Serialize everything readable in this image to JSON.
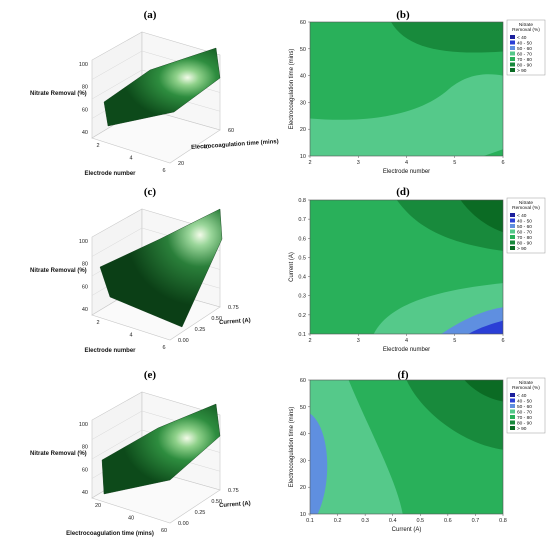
{
  "colors": {
    "lt40": "#1b1f9c",
    "b40_50": "#2a3fd6",
    "b50_60": "#5f8fe0",
    "b60_70": "#55c98a",
    "b70_80": "#29b05a",
    "b80_90": "#188a3c",
    "gt90": "#0b6b24",
    "surface_dark": "#0d4a1a",
    "surface_light": "#dff5d0"
  },
  "legend": {
    "title": [
      "Nitrate",
      "Removal (%)"
    ],
    "items": [
      "<  40",
      "40  -  50",
      "50  -  60",
      "60  -  70",
      "70  -  80",
      "80  -  90",
      ">  90"
    ]
  },
  "chart_data": [
    {
      "id": "a",
      "panel_label": "(a)",
      "type": "surface",
      "zlabel": "Nitrate Removal (%)",
      "xlabel": "Electrode number",
      "ylabel": "Electrocoagulation time (mins)",
      "xticks": [
        "2",
        "4",
        "6"
      ],
      "yticks": [
        "20",
        "40",
        "60"
      ],
      "zticks": [
        "40",
        "60",
        "80",
        "100"
      ],
      "xlim": [
        2,
        6
      ],
      "ylim": [
        10,
        60
      ],
      "zlim": [
        40,
        100
      ]
    },
    {
      "id": "b",
      "panel_label": "(b)",
      "type": "contour",
      "xlabel": "Electrode number",
      "ylabel": "Electrocoagulation time (mins)",
      "xticks": [
        "2",
        "3",
        "4",
        "5",
        "6"
      ],
      "yticks": [
        "10",
        "20",
        "30",
        "40",
        "50",
        "60"
      ],
      "xlim": [
        2,
        6
      ],
      "ylim": [
        10,
        60
      ]
    },
    {
      "id": "c",
      "panel_label": "(c)",
      "type": "surface",
      "zlabel": "Nitrate Removal (%)",
      "xlabel": "Electrode number",
      "ylabel": "Current (A)",
      "xticks": [
        "2",
        "4",
        "6"
      ],
      "yticks": [
        "0.00",
        "0.25",
        "0.50",
        "0.75"
      ],
      "zticks": [
        "40",
        "60",
        "80",
        "100"
      ],
      "xlim": [
        2,
        6
      ],
      "ylim": [
        0,
        0.8
      ],
      "zlim": [
        40,
        100
      ]
    },
    {
      "id": "d",
      "panel_label": "(d)",
      "type": "contour",
      "xlabel": "Electrode number",
      "ylabel": "Current (A)",
      "xticks": [
        "2",
        "3",
        "4",
        "5",
        "6"
      ],
      "yticks": [
        "0.1",
        "0.2",
        "0.3",
        "0.4",
        "0.5",
        "0.6",
        "0.7",
        "0.8"
      ],
      "xlim": [
        2,
        6
      ],
      "ylim": [
        0.02,
        0.8
      ]
    },
    {
      "id": "e",
      "panel_label": "(e)",
      "type": "surface",
      "zlabel": "Nitrate Removal (%)",
      "xlabel": "Electrocoagulation time (mins)",
      "ylabel": "Current (A)",
      "xticks": [
        "20",
        "40",
        "60"
      ],
      "yticks": [
        "0.00",
        "0.25",
        "0.50",
        "0.75"
      ],
      "zticks": [
        "40",
        "60",
        "80",
        "100"
      ],
      "xlim": [
        10,
        60
      ],
      "ylim": [
        0,
        0.8
      ],
      "zlim": [
        40,
        100
      ]
    },
    {
      "id": "f",
      "panel_label": "(f)",
      "type": "contour",
      "xlabel": "Current (A)",
      "ylabel": "Electrocoagulation time (mins)",
      "xticks": [
        "0.1",
        "0.2",
        "0.3",
        "0.4",
        "0.5",
        "0.6",
        "0.7",
        "0.8"
      ],
      "yticks": [
        "10",
        "20",
        "30",
        "40",
        "50",
        "60"
      ],
      "xlim": [
        0.02,
        0.8
      ],
      "ylim": [
        10,
        60
      ]
    }
  ]
}
